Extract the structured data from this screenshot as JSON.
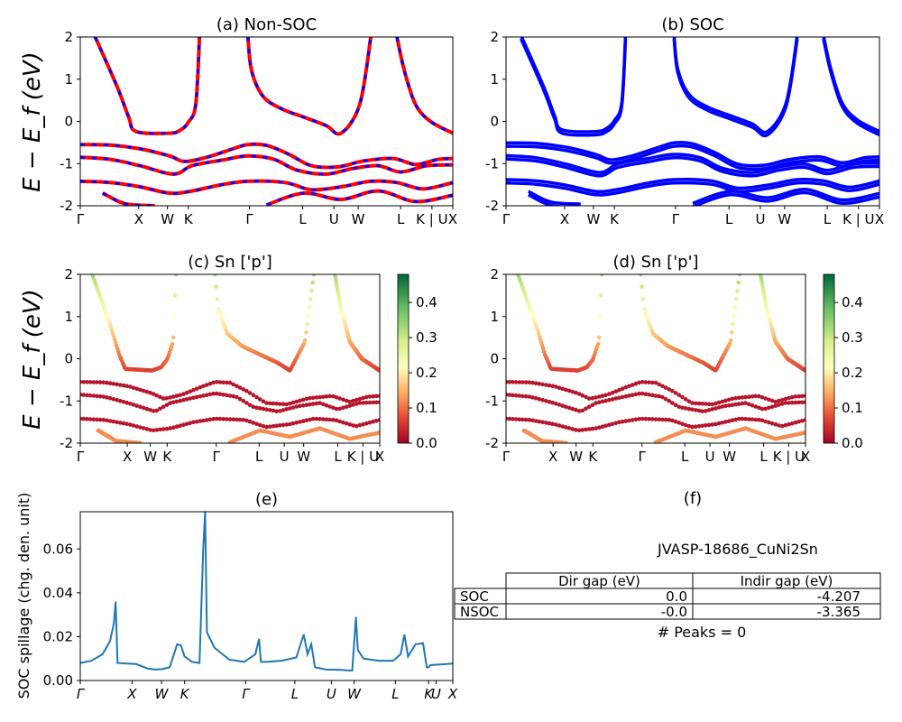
{
  "chart_data": [
    {
      "panel": "a",
      "type": "line",
      "title": "(a) Non-SOC",
      "ylabel": "E − E_f (eV)",
      "ylim": [
        -2,
        2
      ],
      "yticks": [
        -2,
        -1,
        0,
        1,
        2
      ],
      "kpath": [
        "Γ",
        "X",
        "W",
        "K",
        "Γ",
        "L",
        "U",
        "W",
        "L",
        "K | U",
        "X"
      ],
      "colors": {
        "series_a": "#ff0000",
        "series_b": "#0000ff"
      },
      "bands_approx": [
        [
          [
            0,
            -0.55
          ],
          [
            0.08,
            -0.56
          ],
          [
            0.16,
            -0.65
          ],
          [
            0.24,
            -0.82
          ],
          [
            0.28,
            -0.95
          ],
          [
            0.34,
            -0.85
          ],
          [
            0.41,
            -0.65
          ],
          [
            0.45,
            -0.55
          ],
          [
            0.5,
            -0.57
          ],
          [
            0.56,
            -0.78
          ],
          [
            0.62,
            -1.05
          ],
          [
            0.69,
            -1.08
          ],
          [
            0.76,
            -0.94
          ],
          [
            0.84,
            -0.88
          ],
          [
            0.9,
            -1.02
          ],
          [
            0.96,
            -0.9
          ],
          [
            1,
            -0.88
          ]
        ],
        [
          [
            0,
            -0.85
          ],
          [
            0.08,
            -0.9
          ],
          [
            0.16,
            -1.05
          ],
          [
            0.25,
            -1.25
          ],
          [
            0.3,
            -1.05
          ],
          [
            0.38,
            -0.92
          ],
          [
            0.45,
            -0.82
          ],
          [
            0.52,
            -0.9
          ],
          [
            0.58,
            -1.15
          ],
          [
            0.66,
            -1.25
          ],
          [
            0.73,
            -1.12
          ],
          [
            0.8,
            -1.05
          ],
          [
            0.86,
            -1.2
          ],
          [
            0.93,
            -1.05
          ],
          [
            1,
            -1.03
          ]
        ],
        [
          [
            0,
            -1.42
          ],
          [
            0.08,
            -1.45
          ],
          [
            0.16,
            -1.55
          ],
          [
            0.24,
            -1.7
          ],
          [
            0.3,
            -1.65
          ],
          [
            0.38,
            -1.5
          ],
          [
            0.45,
            -1.42
          ],
          [
            0.55,
            -1.45
          ],
          [
            0.62,
            -1.62
          ],
          [
            0.7,
            -1.55
          ],
          [
            0.78,
            -1.42
          ],
          [
            0.85,
            -1.45
          ],
          [
            0.92,
            -1.6
          ],
          [
            1,
            -1.45
          ]
        ],
        [
          [
            0.04,
            2.0
          ],
          [
            0.1,
            0.8
          ],
          [
            0.13,
            0.1
          ],
          [
            0.15,
            -0.24
          ],
          [
            0.24,
            -0.28
          ],
          [
            0.27,
            -0.2
          ],
          [
            0.29,
            -0.02
          ],
          [
            0.31,
            0.4
          ],
          [
            0.32,
            2.0
          ]
        ],
        [
          [
            0.45,
            2.0
          ],
          [
            0.46,
            1.2
          ],
          [
            0.49,
            0.6
          ],
          [
            0.54,
            0.3
          ],
          [
            0.6,
            0.1
          ],
          [
            0.66,
            -0.1
          ],
          [
            0.7,
            -0.28
          ],
          [
            0.75,
            0.4
          ],
          [
            0.78,
            2.0
          ]
        ],
        [
          [
            0.85,
            2.0
          ],
          [
            0.87,
            1.2
          ],
          [
            0.9,
            0.4
          ],
          [
            0.94,
            0.0
          ],
          [
            1,
            -0.28
          ]
        ],
        [
          [
            0.06,
            -1.7
          ],
          [
            0.12,
            -1.95
          ],
          [
            0.2,
            -2.0
          ]
        ],
        [
          [
            0.5,
            -1.98
          ],
          [
            0.6,
            -1.7
          ],
          [
            0.7,
            -1.85
          ],
          [
            0.8,
            -1.65
          ],
          [
            0.9,
            -1.9
          ],
          [
            1,
            -1.75
          ]
        ]
      ]
    },
    {
      "panel": "b",
      "type": "line",
      "title": "(b) SOC",
      "ylim": [
        -2,
        2
      ],
      "yticks": [
        -2,
        -1,
        0,
        1,
        2
      ],
      "kpath": [
        "Γ",
        "X",
        "W",
        "K",
        "Γ",
        "L",
        "U",
        "W",
        "L",
        "K | U",
        "X"
      ],
      "colors": {
        "series": "#0000ff"
      }
    },
    {
      "panel": "c",
      "type": "scatter",
      "title": "(c)  Sn ['p']",
      "ylabel": "E − E_f (eV)",
      "ylim": [
        -2,
        2
      ],
      "yticks": [
        -2,
        -1,
        0,
        1,
        2
      ],
      "kpath": [
        "Γ",
        "X",
        "W",
        "K",
        "Γ",
        "L",
        "U",
        "W",
        "L",
        "K | U",
        "X"
      ],
      "colorbar": {
        "min": 0.0,
        "max": 0.48,
        "ticks": [
          "0.0",
          "0.1",
          "0.2",
          "0.3",
          "0.4"
        ],
        "colormap": "RdYlGn"
      }
    },
    {
      "panel": "d",
      "type": "scatter",
      "title": "(d) Sn ['p']",
      "ylim": [
        -2,
        2
      ],
      "yticks": [
        -2,
        -1,
        0,
        1,
        2
      ],
      "kpath": [
        "Γ",
        "X",
        "W",
        "K",
        "Γ",
        "L",
        "U",
        "W",
        "L",
        "K | U",
        "X"
      ],
      "colorbar": {
        "min": 0.0,
        "max": 0.48,
        "ticks": [
          "0.0",
          "0.1",
          "0.2",
          "0.3",
          "0.4"
        ],
        "colormap": "RdYlGn"
      }
    },
    {
      "panel": "e",
      "type": "line",
      "title": "(e)",
      "ylabel": "SOC spillage (chg. den. unit)",
      "ylim": [
        0,
        0.077
      ],
      "yticks": [
        "0.00",
        "0.02",
        "0.04",
        "0.06"
      ],
      "kpath": [
        "Γ",
        "X",
        "W",
        "K",
        "Γ",
        "L",
        "U",
        "W",
        "L",
        "K",
        "U",
        "X"
      ],
      "color": "#1f77b4",
      "x": [
        0,
        0.03,
        0.06,
        0.08,
        0.09,
        0.095,
        0.1,
        0.12,
        0.15,
        0.18,
        0.2,
        0.22,
        0.24,
        0.26,
        0.27,
        0.28,
        0.3,
        0.32,
        0.33,
        0.335,
        0.34,
        0.36,
        0.4,
        0.44,
        0.47,
        0.48,
        0.485,
        0.5,
        0.54,
        0.58,
        0.6,
        0.61,
        0.62,
        0.63,
        0.66,
        0.7,
        0.73,
        0.74,
        0.745,
        0.76,
        0.8,
        0.84,
        0.86,
        0.87,
        0.88,
        0.9,
        0.92,
        0.93,
        0.935,
        0.94,
        1.0
      ],
      "y": [
        0.008,
        0.009,
        0.012,
        0.018,
        0.026,
        0.036,
        0.008,
        0.0078,
        0.0075,
        0.0055,
        0.005,
        0.0052,
        0.006,
        0.0165,
        0.016,
        0.011,
        0.0085,
        0.008,
        0.06,
        0.077,
        0.022,
        0.015,
        0.0095,
        0.0085,
        0.012,
        0.019,
        0.0085,
        0.0085,
        0.009,
        0.0105,
        0.021,
        0.012,
        0.0165,
        0.006,
        0.005,
        0.0048,
        0.0045,
        0.029,
        0.014,
        0.01,
        0.009,
        0.009,
        0.012,
        0.021,
        0.011,
        0.0165,
        0.017,
        0.006,
        0.006,
        0.007,
        0.0077
      ]
    }
  ],
  "panel_f": {
    "title": "(f)",
    "material": "JVASP-18686_CuNi2Sn",
    "table": {
      "headers": [
        "",
        "Dir gap (eV)",
        "Indir gap (eV)"
      ],
      "rows": [
        [
          "SOC",
          "0.0",
          "-4.207"
        ],
        [
          "NSOC",
          "-0.0",
          "-3.365"
        ]
      ]
    },
    "peaks_text": "# Peaks = 0"
  }
}
